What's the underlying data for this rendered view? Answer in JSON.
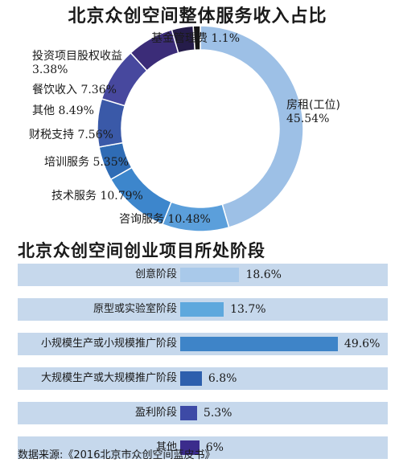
{
  "header": {
    "title1": "北京众创空间整体服务收入占比",
    "title2": "北京众创空间创业项目所处阶段"
  },
  "chart_data": [
    {
      "type": "pie",
      "title": "北京众创空间整体服务收入占比",
      "slices": [
        {
          "label": "房租(工位)",
          "value": 45.54,
          "value_label": "45.54%",
          "color": "#9dc0e6"
        },
        {
          "label": "咨询服务",
          "value": 10.48,
          "value_label": "10.48%",
          "color": "#5b9fdb"
        },
        {
          "label": "技术服务",
          "value": 10.79,
          "value_label": "10.79%",
          "color": "#3d86cc"
        },
        {
          "label": "培训服务",
          "value": 5.35,
          "value_label": "5.35%",
          "color": "#2f6cb5"
        },
        {
          "label": "财税支持",
          "value": 7.56,
          "value_label": "7.56%",
          "color": "#3a59a8"
        },
        {
          "label": "其他",
          "value": 8.49,
          "value_label": "8.49%",
          "color": "#47489e"
        },
        {
          "label": "餐饮收入",
          "value": 7.36,
          "value_label": "7.36%",
          "color": "#3b2c78"
        },
        {
          "label": "投资项目股权收益",
          "value": 3.38,
          "value_label": "3.38%",
          "color": "#251c4a"
        },
        {
          "label": "基金管理费",
          "value": 1.1,
          "value_label": "1.1%",
          "color": "#161616"
        }
      ]
    },
    {
      "type": "bar",
      "title": "北京众创空间创业项目所处阶段",
      "categories": [
        "创意阶段",
        "原型或实验室阶段",
        "小规模生产或小规模推广阶段",
        "大规模生产或大规模推广阶段",
        "盈利阶段",
        "其他"
      ],
      "values": [
        18.6,
        13.7,
        49.6,
        6.8,
        5.3,
        6
      ],
      "value_labels": [
        "18.6%",
        "13.7%",
        "49.6%",
        "6.8%",
        "5.3%",
        "6%"
      ],
      "colors": [
        "#a9c9ea",
        "#5ea8dd",
        "#3e84c8",
        "#2d5fad",
        "#3d4aa6",
        "#3b2c8c"
      ],
      "row_background": "#c6d8ec"
    }
  ],
  "footer": {
    "source": "数据来源:《2016北京市众创空间蓝皮书》"
  }
}
